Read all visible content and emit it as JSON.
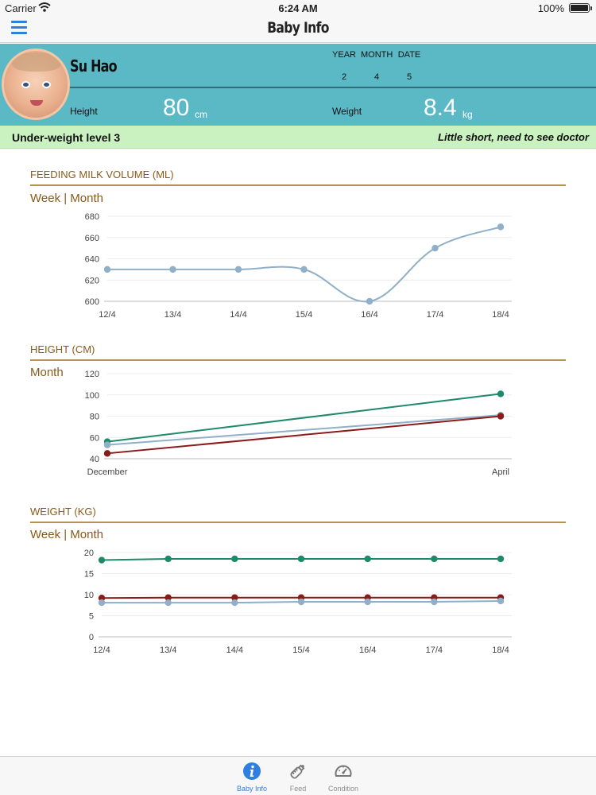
{
  "status_bar": {
    "carrier": "Carrier",
    "time": "6:24 AM",
    "battery": "100%"
  },
  "nav": {
    "title": "Baby Info",
    "menu_icon": "hamburger-menu-icon"
  },
  "profile": {
    "name": "Su Hao",
    "date_labels": {
      "year": "YEAR",
      "month": "MONTH",
      "date": "DATE"
    },
    "date_values": {
      "year": "2",
      "month": "4",
      "date": "5"
    },
    "height_label": "Height",
    "height_value": "80",
    "height_unit": "cm",
    "weight_label": "Weight",
    "weight_value": "8.4",
    "weight_unit": "kg"
  },
  "alert": {
    "level": "Under-weight level 3",
    "advice": "Little short, need to see doctor",
    "background": "#c9f2c0"
  },
  "colors": {
    "accent": "#5bb9c6",
    "header_text": "#8a5a18",
    "series_blue": "#8fb0c8",
    "series_green": "#1f8a6a",
    "series_red": "#8b1a1a",
    "tab_active": "#2f7fe0"
  },
  "sections": {
    "milk": {
      "title": "FEEDING MILK VOLUME (ML)",
      "period_toggle": "Week | Month"
    },
    "height": {
      "title": "HEIGHT (CM)",
      "period_toggle": "Month"
    },
    "weight": {
      "title": "WEIGHT (KG)",
      "period_toggle": "Week | Month"
    }
  },
  "chart_data": [
    {
      "id": "milk",
      "type": "line",
      "x": [
        "12/4",
        "13/4",
        "14/4",
        "15/4",
        "16/4",
        "17/4",
        "18/4"
      ],
      "ylim": [
        600,
        680
      ],
      "yticks": [
        600,
        620,
        640,
        660,
        680
      ],
      "grid": true,
      "smooth": true,
      "series": [
        {
          "values": [
            630,
            630,
            630,
            630,
            600,
            650,
            670
          ],
          "color": "#8fb0c8"
        }
      ]
    },
    {
      "id": "height",
      "type": "line",
      "x": [
        "December",
        "April"
      ],
      "ylim": [
        40,
        120
      ],
      "yticks": [
        40,
        60,
        80,
        100,
        120
      ],
      "grid": true,
      "smooth": false,
      "series": [
        {
          "values": [
            56,
            101
          ],
          "color": "#1f8a6a"
        },
        {
          "values": [
            53,
            81
          ],
          "color": "#8fb0c8"
        },
        {
          "values": [
            45,
            80
          ],
          "color": "#8b1a1a"
        }
      ]
    },
    {
      "id": "weight",
      "type": "line",
      "x": [
        "12/4",
        "13/4",
        "14/4",
        "15/4",
        "16/4",
        "17/4",
        "18/4"
      ],
      "ylim": [
        0,
        20
      ],
      "yticks": [
        0,
        5,
        10,
        15,
        20
      ],
      "grid": true,
      "smooth": false,
      "series": [
        {
          "values": [
            18.2,
            18.5,
            18.5,
            18.5,
            18.5,
            18.5,
            18.5
          ],
          "color": "#1f8a6a"
        },
        {
          "values": [
            9.2,
            9.3,
            9.3,
            9.3,
            9.3,
            9.3,
            9.3
          ],
          "color": "#8b1a1a"
        },
        {
          "values": [
            8.1,
            8.1,
            8.1,
            8.3,
            8.3,
            8.3,
            8.5
          ],
          "color": "#8fb0c8"
        }
      ]
    }
  ],
  "tabs": [
    {
      "label": "Baby Info",
      "icon": "info-icon",
      "active": true
    },
    {
      "label": "Feed",
      "icon": "bottle-icon",
      "active": false
    },
    {
      "label": "Condition",
      "icon": "gauge-icon",
      "active": false
    }
  ]
}
